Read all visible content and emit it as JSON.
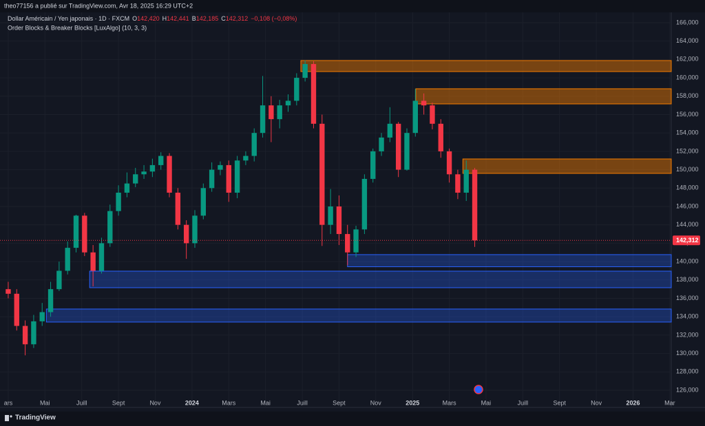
{
  "header": {
    "publisher": "theo77156 a publié sur TradingView.com, Avr 18, 2025 16:29 UTC+2",
    "brand": "TradingView"
  },
  "legend": {
    "symbol": "Dollar Américain / Yen japonais · 1D · FXCM",
    "items": [
      {
        "key": "O",
        "value": "142,420"
      },
      {
        "key": "H",
        "value": "142,441"
      },
      {
        "key": "B",
        "value": "142,185"
      },
      {
        "key": "C",
        "value": "142,312"
      }
    ],
    "change": "−0,108 (−0,08%)",
    "indicator": "Order Blocks & Breaker Blocks [LuxAlgo] (10, 3, 3)"
  },
  "chart_data": {
    "type": "candlestick",
    "up_color": "#089981",
    "down_color": "#f23645",
    "grid": true,
    "xlim": [
      -0.97,
      78.17
    ],
    "xticks": [
      {
        "value": 0,
        "label": "ars"
      },
      {
        "value": 4.33,
        "label": "Mai"
      },
      {
        "value": 8.67,
        "label": "Juill"
      },
      {
        "value": 13,
        "label": "Sept"
      },
      {
        "value": 17.33,
        "label": "Nov"
      },
      {
        "value": 21.67,
        "label": "2024"
      },
      {
        "value": 26,
        "label": "Mars"
      },
      {
        "value": 30.33,
        "label": "Mai"
      },
      {
        "value": 34.67,
        "label": "Juill"
      },
      {
        "value": 39,
        "label": "Sept"
      },
      {
        "value": 43.33,
        "label": "Nov"
      },
      {
        "value": 47.67,
        "label": "2025"
      },
      {
        "value": 52,
        "label": "Mars"
      },
      {
        "value": 56.33,
        "label": "Mai"
      },
      {
        "value": 60.67,
        "label": "Juill"
      },
      {
        "value": 65,
        "label": "Sept"
      },
      {
        "value": 69.33,
        "label": "Nov"
      },
      {
        "value": 73.67,
        "label": "2026"
      },
      {
        "value": 78,
        "label": "Mar"
      }
    ],
    "ylim": [
      124.13,
      167.12
    ],
    "yticks": [
      {
        "value": 126,
        "label": "126,000"
      },
      {
        "value": 128,
        "label": "128,000"
      },
      {
        "value": 130,
        "label": "130,000"
      },
      {
        "value": 132,
        "label": "132,000"
      },
      {
        "value": 134,
        "label": "134,000"
      },
      {
        "value": 136,
        "label": "136,000"
      },
      {
        "value": 138,
        "label": "138,000"
      },
      {
        "value": 140,
        "label": "140,000"
      },
      {
        "value": 142,
        "label": "142,000"
      },
      {
        "value": 144,
        "label": "144,000"
      },
      {
        "value": 146,
        "label": "146,000"
      },
      {
        "value": 148,
        "label": "148,000"
      },
      {
        "value": 150,
        "label": "150,000"
      },
      {
        "value": 152,
        "label": "152,000"
      },
      {
        "value": 154,
        "label": "154,000"
      },
      {
        "value": 156,
        "label": "156,000"
      },
      {
        "value": 158,
        "label": "158,000"
      },
      {
        "value": 160,
        "label": "160,000"
      },
      {
        "value": 162,
        "label": "162,000"
      },
      {
        "value": 164,
        "label": "164,000"
      },
      {
        "value": 166,
        "label": "166,000"
      }
    ],
    "open": [
      137,
      136.5,
      133,
      131,
      133.5,
      134.5,
      137,
      139,
      141.5,
      145,
      141,
      139,
      142,
      145.5,
      147.5,
      148.5,
      149.5,
      149.8,
      150.5,
      151.5,
      147.5,
      144,
      142,
      145,
      148,
      150,
      150.5,
      147.5,
      151,
      151.5,
      154,
      157,
      155.5,
      157,
      157.5,
      160,
      161.5,
      155,
      144,
      146,
      143,
      141,
      143.5,
      149,
      152,
      153.5,
      155,
      150,
      154,
      157.5,
      157,
      155,
      152,
      149.5,
      147.5,
      150
    ],
    "high": [
      137.8,
      137,
      133.6,
      134.2,
      135.5,
      137.8,
      140,
      142.2,
      145.1,
      145.3,
      141.8,
      142.6,
      146.2,
      148.3,
      149.7,
      150.2,
      150.5,
      151.2,
      151.9,
      151.8,
      148,
      144.5,
      145.6,
      148.5,
      150.8,
      150.9,
      151,
      151.5,
      152,
      154.5,
      160.2,
      158,
      157.6,
      158.2,
      160.5,
      161.9,
      161.8,
      156,
      147.9,
      147.2,
      144,
      143.9,
      149.5,
      152.3,
      154,
      156.8,
      155.2,
      154.5,
      158.8,
      158.3,
      157.3,
      155.5,
      152.3,
      150,
      151,
      150.2
    ],
    "low": [
      136,
      132.5,
      129.8,
      130.6,
      133,
      134,
      136.8,
      138.6,
      141,
      140.6,
      137.3,
      138.7,
      141.6,
      145,
      147,
      148.1,
      149,
      149.2,
      150,
      147,
      143.5,
      140.3,
      141.5,
      144.6,
      147.6,
      149.4,
      146.5,
      146.9,
      150.5,
      150.9,
      153.5,
      153,
      154.5,
      156.3,
      157,
      159.6,
      154.5,
      141.7,
      143,
      141.8,
      139.6,
      140.5,
      143,
      148.6,
      151.5,
      153,
      149.2,
      149.9,
      153.6,
      156,
      154.4,
      151.3,
      148.6,
      146.8,
      146.6,
      141.6
    ],
    "close": [
      136.5,
      133,
      131,
      133.5,
      134.5,
      137,
      139,
      141.5,
      145,
      141,
      139,
      142,
      145.5,
      147.5,
      148.5,
      149.5,
      149.8,
      150.5,
      151.5,
      147.5,
      144,
      142,
      145,
      148,
      150,
      150.5,
      147.5,
      151,
      151.5,
      154,
      157,
      155.5,
      157,
      157.5,
      160,
      161.5,
      155,
      144,
      146,
      143,
      141,
      143.5,
      149,
      152,
      153.5,
      155,
      150,
      154,
      157.5,
      157,
      155,
      152,
      149.5,
      147.5,
      150,
      142.312
    ],
    "last_price": {
      "value": 142.312,
      "label": "142,312"
    },
    "bearish_blocks": {
      "color": "#f57c00",
      "top": [
        161.88,
        158.81,
        151.17
      ],
      "bottom": [
        160.68,
        157.16,
        149.6
      ],
      "start": [
        34.5,
        48.05,
        53.6
      ]
    },
    "bullish_blocks": {
      "color": "#2962ff",
      "top": [
        140.76,
        138.96,
        134.84
      ],
      "bottom": [
        139.44,
        137.16,
        133.42
      ],
      "start": [
        40.0,
        9.6,
        4.5
      ]
    }
  }
}
